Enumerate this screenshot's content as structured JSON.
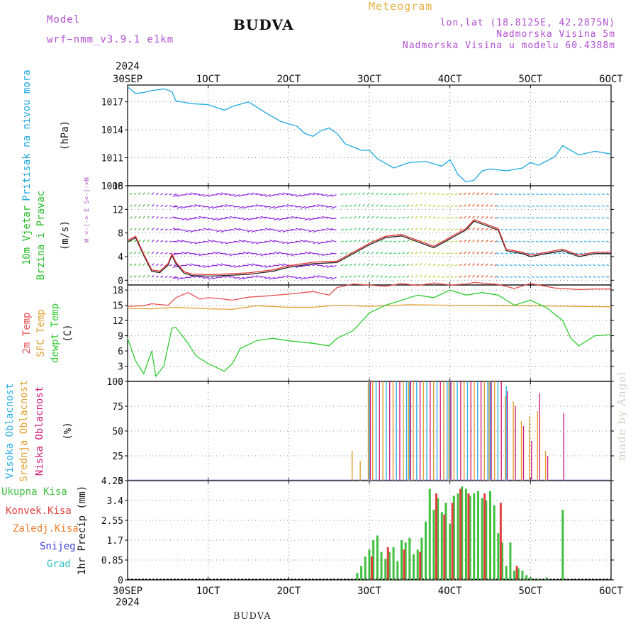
{
  "header": {
    "model_label": "Model",
    "model_name": "wrf−nmm_v3.9.1 e1km",
    "title": "BUDVA",
    "subtitle": "Meteogram",
    "lonlat": "lon,lat (18.8125E, 42.2875N)",
    "elevation": "Nadmorska Visina 5m",
    "model_elevation": "Nadmorska Visina u modelu 60.4388m"
  },
  "footer": {
    "station": "BUDVA",
    "credit": "made by Angel"
  },
  "colors": {
    "pressure": "#1ea8e0",
    "temp2m": "#e85050",
    "sfc": "#e0a030",
    "dewpt": "#30cc30",
    "high": "#30b0e8",
    "mid": "#e0a030",
    "low": "#d0207a",
    "total": "#40c040",
    "conv": "#e04040",
    "frozen": "#f08030",
    "snow": "#4040e0",
    "grad": "#30c0c0"
  },
  "chart_data": [
    {
      "type": "line",
      "panel": "pressure",
      "ylabel_main": "Pritisak na nivou mora",
      "unit": "(hPa)",
      "yticks": [
        "1008",
        "1011",
        "1014",
        "1017"
      ],
      "ylim": [
        1008,
        1018.8
      ],
      "x_date_ticks": [
        "30SEP",
        "1OCT",
        "2OCT",
        "3OCT",
        "4OCT",
        "5OCT",
        "6OCT"
      ],
      "x_year": "2024",
      "grid": true,
      "series": [
        {
          "x": [
            0,
            0.1,
            0.2,
            0.3,
            0.45,
            0.55,
            0.6,
            0.8,
            1.0,
            1.2,
            1.3,
            1.5,
            1.7,
            1.9,
            2.1,
            2.2,
            2.3,
            2.4,
            2.5,
            2.6,
            2.7,
            2.9,
            3.0,
            3.1,
            3.3,
            3.5,
            3.7,
            3.9,
            4.0,
            4.1,
            4.2,
            4.3,
            4.4,
            4.5,
            4.7,
            4.9,
            5.0,
            5.1,
            5.3,
            5.4,
            5.6,
            5.8,
            6.0
          ],
          "y": [
            1018.6,
            1017.9,
            1018.0,
            1018.2,
            1018.4,
            1018.1,
            1017.1,
            1016.8,
            1016.7,
            1016.1,
            1016.5,
            1017.0,
            1015.9,
            1014.9,
            1014.4,
            1013.6,
            1013.3,
            1013.9,
            1014.2,
            1013.6,
            1012.5,
            1011.8,
            1011.8,
            1010.9,
            1009.9,
            1010.5,
            1010.6,
            1010.1,
            1010.8,
            1009.2,
            1008.4,
            1008.6,
            1009.6,
            1009.8,
            1009.6,
            1009.9,
            1010.5,
            1010.2,
            1011.1,
            1012.3,
            1011.3,
            1011.7,
            1011.4
          ]
        }
      ]
    },
    {
      "type": "line",
      "panel": "wind",
      "ylabel_main": "10m Vjetar",
      "ylabel_sub": "Brzina i Pravac",
      "unit": "(m/s)",
      "direction_legend": "W <-|-> E   S<-|->N",
      "yticks": [
        "0",
        "4",
        "8",
        "12",
        "16"
      ],
      "ylim": [
        -0.8,
        16
      ],
      "series": [
        {
          "name": "wind speed",
          "x": [
            0,
            0.1,
            0.2,
            0.3,
            0.4,
            0.5,
            0.55,
            0.6,
            0.7,
            0.8,
            1.0,
            1.2,
            1.5,
            1.8,
            2.0,
            2.3,
            2.6,
            2.8,
            3.0,
            3.2,
            3.4,
            3.6,
            3.8,
            4.0,
            4.2,
            4.3,
            4.5,
            4.6,
            4.7,
            4.9,
            5.0,
            5.2,
            5.4,
            5.6,
            5.8,
            6.0
          ],
          "y": [
            6.5,
            7.2,
            4.2,
            1.5,
            1.3,
            2.5,
            4.2,
            2.8,
            1.2,
            0.8,
            0.7,
            0.8,
            1.0,
            1.5,
            2.2,
            2.8,
            3.0,
            4.5,
            6.0,
            7.2,
            7.5,
            6.5,
            5.5,
            7.0,
            8.5,
            10.0,
            9.0,
            8.5,
            5.0,
            4.5,
            4.0,
            4.5,
            5.0,
            4.0,
            4.5,
            4.5
          ]
        }
      ]
    },
    {
      "type": "line",
      "panel": "temperature",
      "labels": [
        "2m Temp",
        "SFC Temp",
        "dewpt Temp"
      ],
      "unit": "(C)",
      "yticks": [
        "0",
        "3",
        "6",
        "9",
        "12",
        "15",
        "18"
      ],
      "ylim": [
        0,
        19
      ],
      "series": [
        {
          "name": "2m Temp",
          "x": [
            0,
            0.2,
            0.3,
            0.5,
            0.6,
            0.75,
            0.9,
            1.0,
            1.2,
            1.3,
            1.5,
            1.7,
            2.0,
            2.3,
            2.5,
            2.6,
            2.8,
            3.0,
            3.2,
            3.4,
            3.6,
            3.8,
            4.0,
            4.2,
            4.3,
            4.6,
            4.8,
            5.0,
            5.3,
            5.6,
            5.8,
            6.0
          ],
          "y": [
            14.8,
            14.9,
            15.3,
            15.0,
            16.5,
            17.5,
            16.2,
            16.5,
            16.2,
            16.0,
            16.6,
            16.8,
            17.2,
            17.7,
            17.0,
            18.5,
            19.2,
            19.0,
            18.7,
            19.3,
            18.9,
            19.4,
            19.0,
            19.2,
            19.5,
            19.1,
            18.3,
            19.3,
            18.4,
            18.1,
            18.2,
            18.2
          ]
        },
        {
          "name": "SFC Temp",
          "x": [
            0,
            0.3,
            0.6,
            1.0,
            1.3,
            1.6,
            2.0,
            2.3,
            2.6,
            3.0,
            3.5,
            4.0,
            4.5,
            5.0,
            5.5,
            6.0
          ],
          "y": [
            14.4,
            14.3,
            14.6,
            14.3,
            14.2,
            14.9,
            14.6,
            14.6,
            15.0,
            14.8,
            15.1,
            15.0,
            14.9,
            14.9,
            14.8,
            14.7
          ]
        },
        {
          "name": "dewpt Temp",
          "x": [
            0,
            0.1,
            0.2,
            0.3,
            0.35,
            0.45,
            0.55,
            0.6,
            0.75,
            0.85,
            1.0,
            1.2,
            1.3,
            1.4,
            1.6,
            1.8,
            2.0,
            2.3,
            2.5,
            2.6,
            2.8,
            3.0,
            3.2,
            3.4,
            3.6,
            3.8,
            4.0,
            4.2,
            4.4,
            4.6,
            4.7,
            4.8,
            5.0,
            5.2,
            5.4,
            5.5,
            5.6,
            5.8,
            6.0
          ],
          "y": [
            8.5,
            4.0,
            1.5,
            6.0,
            1.0,
            3.0,
            10.5,
            10.6,
            7.5,
            5.0,
            3.5,
            2.0,
            3.5,
            6.5,
            8.0,
            8.5,
            8.0,
            7.5,
            7.0,
            8.5,
            10.0,
            13.5,
            15.0,
            16.0,
            17.0,
            16.5,
            18.0,
            17.0,
            17.5,
            17.0,
            16.0,
            15.0,
            16.0,
            14.5,
            12.0,
            8.5,
            7.0,
            9.0,
            9.2
          ]
        }
      ]
    },
    {
      "type": "bar",
      "panel": "cloud",
      "labels": [
        "Visoka Oblacnost",
        "Srednja Oblacnost",
        "Niska Oblacnost"
      ],
      "unit": "(%)",
      "yticks": [
        "0",
        "25",
        "50",
        "75",
        "100"
      ],
      "ylim": [
        0,
        100
      ],
      "series": [
        {
          "name": "Srednja Oblacnost",
          "x": [
            2.8,
            2.9,
            3.0,
            3.5,
            4.0,
            4.5,
            4.7,
            4.8,
            4.9,
            5.0,
            5.1,
            5.2
          ],
          "values": [
            30,
            20,
            100,
            100,
            100,
            100,
            85,
            80,
            60,
            65,
            70,
            30
          ]
        },
        {
          "name": "Niska Oblacnost",
          "x": [
            3.0,
            3.5,
            4.0,
            4.5,
            4.7,
            4.8,
            4.9,
            5.0,
            5.1,
            5.2,
            5.4
          ],
          "values": [
            100,
            100,
            100,
            100,
            90,
            75,
            55,
            40,
            88,
            25,
            68
          ]
        },
        {
          "name": "Visoka Oblacnost",
          "x": [
            3.0,
            3.5,
            4.0,
            4.5,
            4.7
          ],
          "values": [
            100,
            100,
            100,
            100,
            95
          ]
        }
      ]
    },
    {
      "type": "bar",
      "panel": "precip",
      "labels": [
        "Ukupna Kisa",
        "Konvek.Kisa",
        "Zaledj.Kisa",
        "Snijeg",
        "Grad"
      ],
      "unit": "1hr Precip (mm)",
      "yticks": [
        "0",
        "0.85",
        "1.7",
        "2.55",
        "3.4",
        "4.25"
      ],
      "ylim": [
        0,
        4.25
      ],
      "x_date_ticks": [
        "30SEP",
        "1OCT",
        "2OCT",
        "3OCT",
        "4OCT",
        "5OCT",
        "6OCT"
      ],
      "x_year": "2024",
      "series": [
        {
          "name": "Ukupna Kisa",
          "x": [
            2.85,
            2.9,
            2.95,
            3.0,
            3.05,
            3.1,
            3.15,
            3.2,
            3.25,
            3.3,
            3.35,
            3.4,
            3.45,
            3.5,
            3.55,
            3.6,
            3.65,
            3.7,
            3.75,
            3.8,
            3.85,
            3.9,
            3.95,
            4.0,
            4.05,
            4.1,
            4.15,
            4.2,
            4.25,
            4.3,
            4.35,
            4.4,
            4.45,
            4.5,
            4.55,
            4.6,
            4.65,
            4.7,
            4.75,
            4.8,
            4.85,
            4.9,
            4.95,
            5.0,
            5.1,
            5.2,
            5.4
          ],
          "values": [
            0.3,
            0.6,
            1.0,
            1.3,
            1.7,
            1.9,
            1.2,
            0.9,
            1.2,
            1.4,
            0.8,
            1.7,
            1.6,
            1.8,
            1.1,
            1.3,
            1.8,
            2.5,
            3.9,
            3.0,
            3.5,
            2.9,
            3.3,
            2.4,
            3.6,
            3.7,
            4.0,
            3.9,
            3.6,
            3.7,
            3.8,
            3.5,
            3.4,
            3.8,
            3.2,
            2.0,
            1.6,
            0.6,
            1.6,
            0.4,
            0.5,
            0.4,
            0.2,
            0.1,
            0.05,
            0.1,
            3.0
          ]
        },
        {
          "name": "Konvek.Kisa",
          "x": [
            3.0,
            3.2,
            3.4,
            3.6,
            3.8,
            3.9,
            4.0,
            4.1,
            4.2,
            4.4,
            4.6,
            4.8
          ],
          "values": [
            1.0,
            1.4,
            1.3,
            1.2,
            3.7,
            2.8,
            3.3,
            3.9,
            3.7,
            3.7,
            3.3,
            0.6
          ]
        }
      ]
    }
  ]
}
